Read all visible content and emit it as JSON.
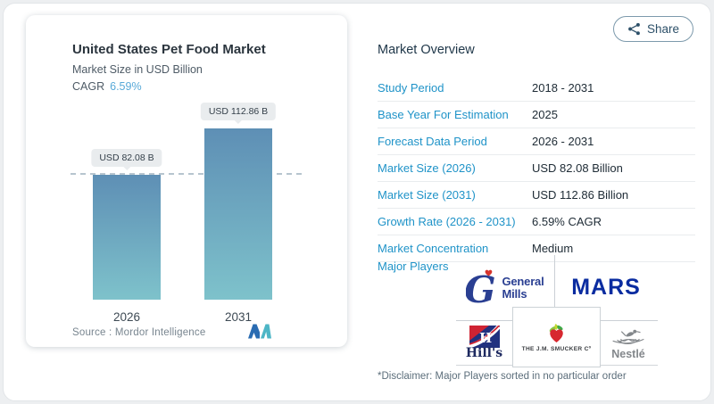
{
  "share": {
    "label": "Share"
  },
  "chart": {
    "title": "United States Pet Food Market",
    "subtitle": "Market Size in USD Billion",
    "cagr_label": "CAGR",
    "cagr_value": "6.59%",
    "source_label": "Source :",
    "source_name": "Mordor Intelligence"
  },
  "chart_data": {
    "type": "bar",
    "title": "United States Pet Food Market",
    "ylabel": "Market Size in USD Billion",
    "categories": [
      "2026",
      "2031"
    ],
    "values": [
      82.08,
      112.86
    ],
    "bar_labels": [
      "USD 82.08 B",
      "USD 112.86 B"
    ],
    "cagr_percent": 6.59,
    "ylim": [
      0,
      120
    ],
    "grid": false,
    "dashed_reference_at": 82.08,
    "bar_color_top": "#5e8fb5",
    "bar_color_bottom": "#7ec2cb"
  },
  "overview": {
    "title": "Market Overview",
    "rows": [
      {
        "label": "Study Period",
        "value": "2018 - 2031"
      },
      {
        "label": "Base Year For Estimation",
        "value": "2025"
      },
      {
        "label": "Forecast Data Period",
        "value": "2026 - 2031"
      },
      {
        "label": "Market Size (2026)",
        "value": "USD 82.08 Billion"
      },
      {
        "label": "Market Size (2031)",
        "value": "USD 112.86 Billion"
      },
      {
        "label": "Growth Rate (2026 - 2031)",
        "value": "6.59% CAGR"
      },
      {
        "label": "Market Concentration",
        "value": "Medium"
      }
    ],
    "major_players_label": "Major Players",
    "players": {
      "general_mills": {
        "name": "General Mills",
        "monogram": "G",
        "line1": "General",
        "line2": "Mills"
      },
      "mars": {
        "name": "MARS",
        "wordmark": "MARS"
      },
      "hills": {
        "name": "Hill's",
        "monogram": "H",
        "wordmark": "Hill's"
      },
      "smucker": {
        "name": "The J.M. Smucker Co",
        "wordmark": "THE J.M. SMUCKER Cº"
      },
      "nestle": {
        "name": "Nestlé",
        "wordmark": "Nestlé"
      }
    },
    "disclaimer": "*Disclaimer: Major Players sorted in no particular order"
  },
  "colors": {
    "accent_label_blue": "#1f93c8",
    "cagr_value_blue": "#58a9d8",
    "share_button_blue": "#2d5069"
  }
}
